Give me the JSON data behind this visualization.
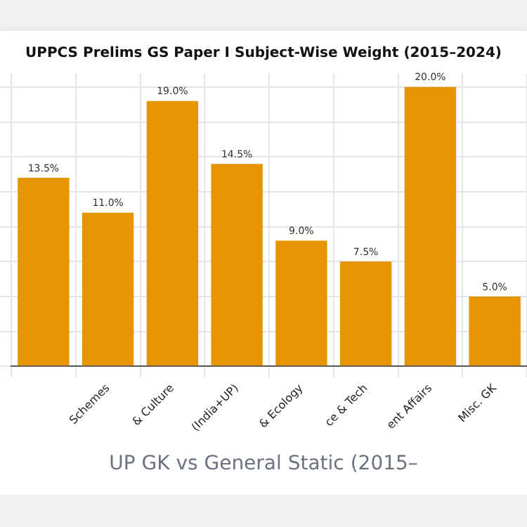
{
  "chart_data": {
    "type": "bar",
    "title": "UPPCS Prelims GS Paper I Subject-Wise Weight (2015–2024)",
    "categories": [
      null,
      "Schemes",
      "& Culture",
      "(India+UP)",
      "& Ecology",
      "ce & Tech",
      "ent Affairs",
      "Misc. GK"
    ],
    "values": [
      13.5,
      11.0,
      19.0,
      14.5,
      9.0,
      7.5,
      20.0,
      5.0
    ],
    "color": "#e69500",
    "value_labels": [
      "13.5%",
      "11.0%",
      "19.0%",
      "14.5%",
      "9.0%",
      "7.5%",
      "20.0%",
      "5.0%"
    ],
    "ylim": [
      0,
      21
    ],
    "yticks": [
      {
        "value": 0,
        "label": null
      },
      {
        "value": 2.5,
        "label": null
      },
      {
        "value": 5,
        "label": null
      },
      {
        "value": 7.5,
        "label": null
      },
      {
        "value": 10,
        "label": null
      },
      {
        "value": 12.5,
        "label": null
      },
      {
        "value": 15,
        "label": null
      },
      {
        "value": 17.5,
        "label": null
      },
      {
        "value": 20,
        "label": null
      }
    ],
    "tick_labels": "x",
    "grid": true,
    "legend": false,
    "annotations": [
      "UP GK vs General Static (2015–"
    ]
  }
}
